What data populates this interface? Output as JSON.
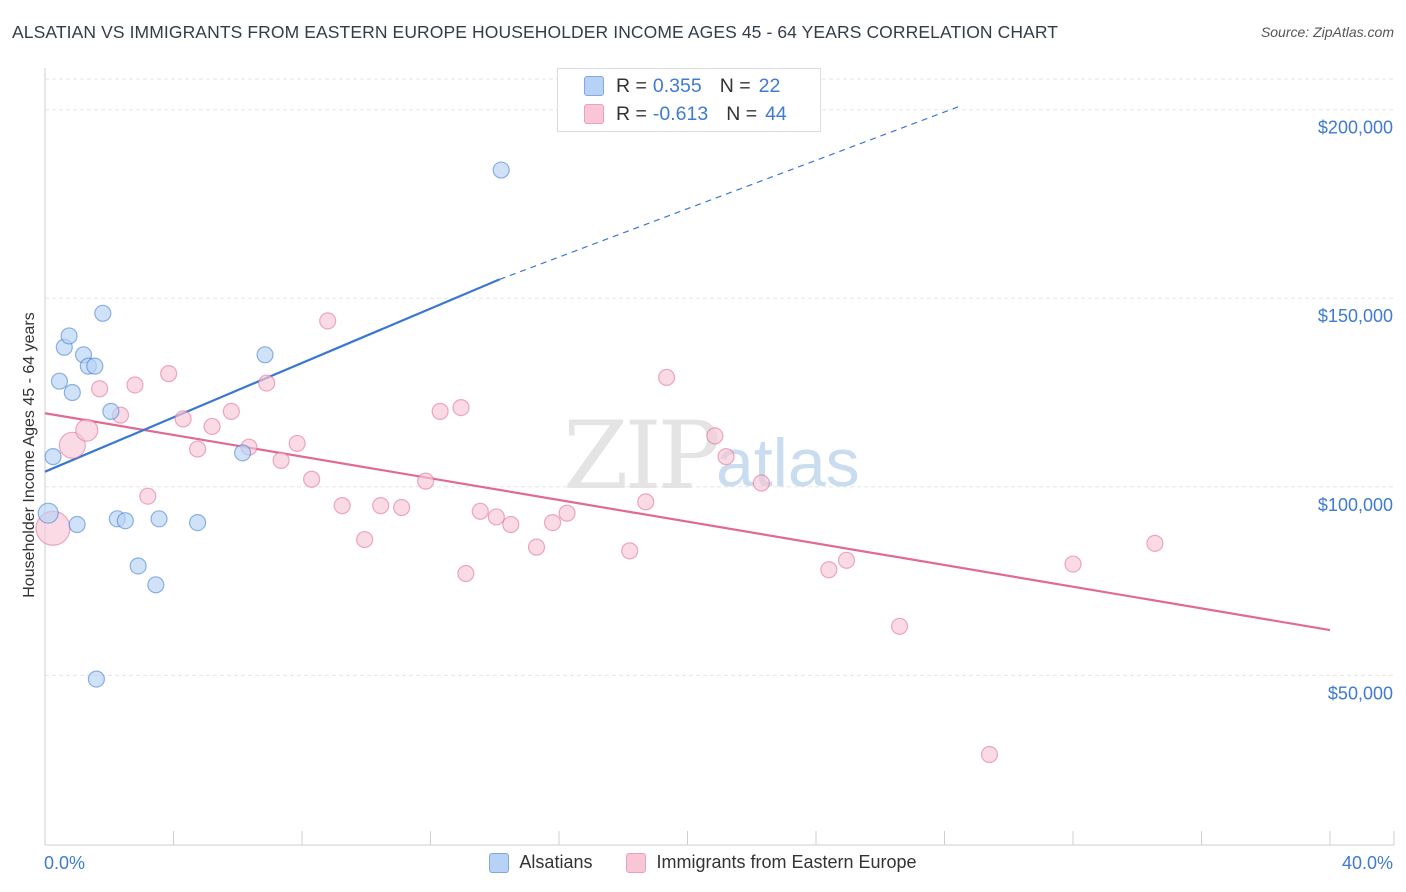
{
  "header": {
    "title": "ALSATIAN VS IMMIGRANTS FROM EASTERN EUROPE HOUSEHOLDER INCOME AGES 45 - 64 YEARS CORRELATION CHART",
    "source": "Source: ZipAtlas.com"
  },
  "watermark": {
    "zip": "ZIP",
    "atlas": "atlas"
  },
  "colors": {
    "blue": "#3a78d0",
    "blue_fill": "#b7d2f5",
    "pink": "#e06a92",
    "pink_fill": "#f8c6d6",
    "axis_label": "#3f7bd0",
    "grid": "#e6e6e6"
  },
  "legend_top": {
    "r_label": "R =",
    "n_label": "N =",
    "rows": [
      {
        "r": "0.355",
        "n": "22"
      },
      {
        "r": "-0.613",
        "n": "44"
      }
    ]
  },
  "chart_data": {
    "type": "scatter",
    "title": "ALSATIAN VS IMMIGRANTS FROM EASTERN EUROPE HOUSEHOLDER INCOME AGES 45 - 64 YEARS CORRELATION CHART",
    "xlabel": "",
    "ylabel": "Householder Income Ages 45 - 64 years",
    "xlim": [
      0,
      40
    ],
    "ylim": [
      5000,
      210000
    ],
    "x_tick_labels": [
      "0.0%",
      "40.0%"
    ],
    "y_ticks": [
      {
        "value": 50000,
        "label": "$50,000"
      },
      {
        "value": 100000,
        "label": "$100,000"
      },
      {
        "value": 150000,
        "label": "$150,000"
      },
      {
        "value": 200000,
        "label": "$200,000"
      }
    ],
    "grid": true,
    "legend_position": "bottom-center",
    "series": [
      {
        "name": "Alsatians",
        "color": "#3a78d0",
        "fill": "#b7d2f5",
        "r": 0.355,
        "n": 22,
        "points": [
          [
            0.1,
            93000
          ],
          [
            0.25,
            108000
          ],
          [
            0.45,
            128000
          ],
          [
            0.6,
            137000
          ],
          [
            0.75,
            140000
          ],
          [
            0.85,
            125000
          ],
          [
            1.0,
            90000
          ],
          [
            1.2,
            135000
          ],
          [
            1.35,
            132000
          ],
          [
            1.55,
            132000
          ],
          [
            1.8,
            146000
          ],
          [
            1.6,
            49000
          ],
          [
            2.05,
            120000
          ],
          [
            2.25,
            91500
          ],
          [
            2.5,
            91000
          ],
          [
            2.9,
            79000
          ],
          [
            3.45,
            74000
          ],
          [
            3.55,
            91500
          ],
          [
            4.75,
            90500
          ],
          [
            6.15,
            109000
          ],
          [
            6.85,
            135000
          ],
          [
            14.2,
            184000
          ]
        ],
        "trend": {
          "x": [
            0,
            14.15
          ],
          "y": [
            104000,
            155000
          ],
          "dashed_extension": {
            "x": [
              14.15,
              28.5
            ],
            "y": [
              155000,
              201000
            ]
          }
        }
      },
      {
        "name": "Immigrants from Eastern Europe",
        "color": "#e06a92",
        "fill": "#f8c6d6",
        "r": -0.613,
        "n": 44,
        "points": [
          [
            0.25,
            89000
          ],
          [
            0.85,
            111000
          ],
          [
            1.3,
            115000
          ],
          [
            1.7,
            126000
          ],
          [
            2.35,
            119000
          ],
          [
            2.8,
            127000
          ],
          [
            3.2,
            97500
          ],
          [
            3.85,
            130000
          ],
          [
            4.3,
            118000
          ],
          [
            4.75,
            110000
          ],
          [
            5.2,
            116000
          ],
          [
            5.8,
            120000
          ],
          [
            6.35,
            110500
          ],
          [
            6.9,
            127500
          ],
          [
            7.35,
            107000
          ],
          [
            7.85,
            111500
          ],
          [
            8.3,
            102000
          ],
          [
            8.8,
            144000
          ],
          [
            9.25,
            95000
          ],
          [
            9.95,
            86000
          ],
          [
            10.45,
            95000
          ],
          [
            11.1,
            94500
          ],
          [
            11.85,
            101500
          ],
          [
            12.3,
            120000
          ],
          [
            12.95,
            121000
          ],
          [
            13.1,
            77000
          ],
          [
            13.55,
            93500
          ],
          [
            14.05,
            92000
          ],
          [
            14.5,
            90000
          ],
          [
            15.3,
            84000
          ],
          [
            15.8,
            90500
          ],
          [
            16.25,
            93000
          ],
          [
            18.2,
            83000
          ],
          [
            18.7,
            96000
          ],
          [
            19.35,
            129000
          ],
          [
            20.85,
            113500
          ],
          [
            21.2,
            108000
          ],
          [
            22.3,
            101000
          ],
          [
            24.4,
            78000
          ],
          [
            24.95,
            80500
          ],
          [
            26.6,
            63000
          ],
          [
            29.4,
            29000
          ],
          [
            32.0,
            79500
          ],
          [
            34.55,
            85000
          ]
        ],
        "trend": {
          "x": [
            0,
            40
          ],
          "y": [
            119500,
            62000
          ]
        }
      }
    ]
  },
  "legend_bottom": {
    "items": [
      {
        "label": "Alsatians"
      },
      {
        "label": "Immigrants from Eastern Europe"
      }
    ]
  }
}
